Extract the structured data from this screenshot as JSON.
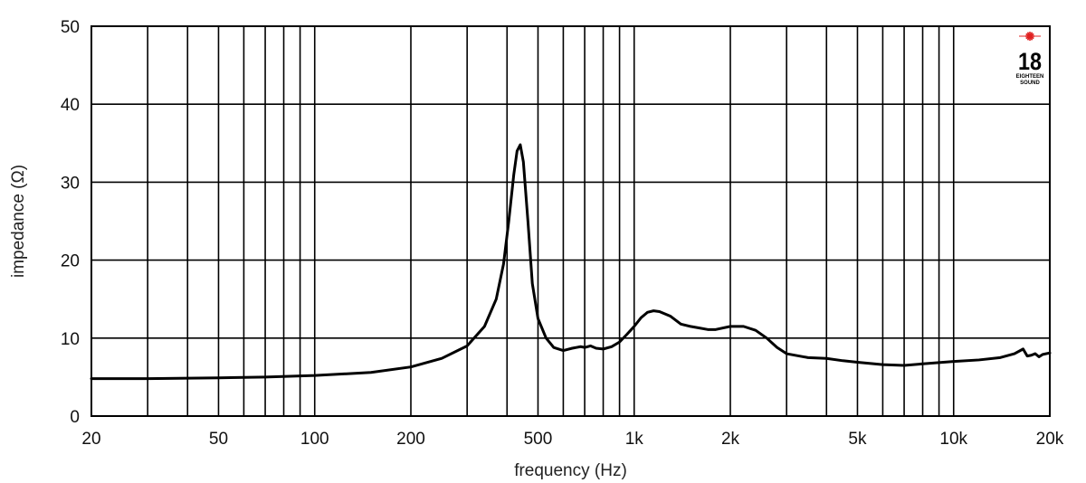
{
  "chart_data": {
    "type": "line",
    "xlabel": "frequency (Hz)",
    "ylabel": "impedance (Ω)",
    "xscale": "log",
    "xlim": [
      20,
      20000
    ],
    "ylim": [
      0,
      50
    ],
    "grid": true,
    "x_ticks": [
      {
        "value": 20,
        "label": "20"
      },
      {
        "value": 50,
        "label": "50"
      },
      {
        "value": 100,
        "label": "100"
      },
      {
        "value": 200,
        "label": "200"
      },
      {
        "value": 500,
        "label": "500"
      },
      {
        "value": 1000,
        "label": "1k"
      },
      {
        "value": 2000,
        "label": "2k"
      },
      {
        "value": 5000,
        "label": "5k"
      },
      {
        "value": 10000,
        "label": "10k"
      },
      {
        "value": 20000,
        "label": "20k"
      }
    ],
    "x_gridlines": [
      30,
      40,
      50,
      60,
      70,
      80,
      90,
      100,
      200,
      300,
      400,
      500,
      600,
      700,
      800,
      900,
      1000,
      2000,
      3000,
      4000,
      5000,
      6000,
      7000,
      8000,
      9000,
      10000
    ],
    "y_ticks": [
      {
        "value": 0,
        "label": "0"
      },
      {
        "value": 10,
        "label": "10"
      },
      {
        "value": 20,
        "label": "20"
      },
      {
        "value": 30,
        "label": "30"
      },
      {
        "value": 40,
        "label": "40"
      },
      {
        "value": 50,
        "label": "50"
      }
    ],
    "series": [
      {
        "color": "#000000",
        "x": [
          20,
          30,
          50,
          70,
          100,
          150,
          200,
          250,
          300,
          340,
          370,
          390,
          405,
          420,
          430,
          440,
          450,
          465,
          480,
          500,
          530,
          560,
          600,
          640,
          680,
          700,
          730,
          760,
          800,
          850,
          900,
          950,
          1000,
          1050,
          1100,
          1150,
          1200,
          1300,
          1400,
          1500,
          1600,
          1700,
          1800,
          2000,
          2200,
          2400,
          2600,
          2800,
          3000,
          3500,
          4000,
          4500,
          5000,
          6000,
          7000,
          8000,
          10000,
          12000,
          14000,
          15500,
          16500,
          17000,
          17500,
          18000,
          18500,
          19000,
          20000
        ],
        "y": [
          4.8,
          4.8,
          4.9,
          5.0,
          5.2,
          5.6,
          6.3,
          7.4,
          9.0,
          11.5,
          15.0,
          19.5,
          25.0,
          31.0,
          34.0,
          34.8,
          32.6,
          25.0,
          17.0,
          12.5,
          10.0,
          8.8,
          8.4,
          8.7,
          8.9,
          8.8,
          9.0,
          8.7,
          8.6,
          8.9,
          9.5,
          10.5,
          11.5,
          12.6,
          13.3,
          13.5,
          13.4,
          12.8,
          11.8,
          11.5,
          11.3,
          11.1,
          11.1,
          11.5,
          11.5,
          11.0,
          10.0,
          8.8,
          8.0,
          7.5,
          7.4,
          7.1,
          6.9,
          6.6,
          6.5,
          6.7,
          7.0,
          7.2,
          7.5,
          8.0,
          8.6,
          7.7,
          7.8,
          8.0,
          7.6,
          7.9,
          8.1
        ]
      }
    ]
  },
  "logo": {
    "number": "18",
    "text_line1": "EIGHTEEN",
    "text_line2": "SOUND",
    "star_color": "#e02020"
  }
}
